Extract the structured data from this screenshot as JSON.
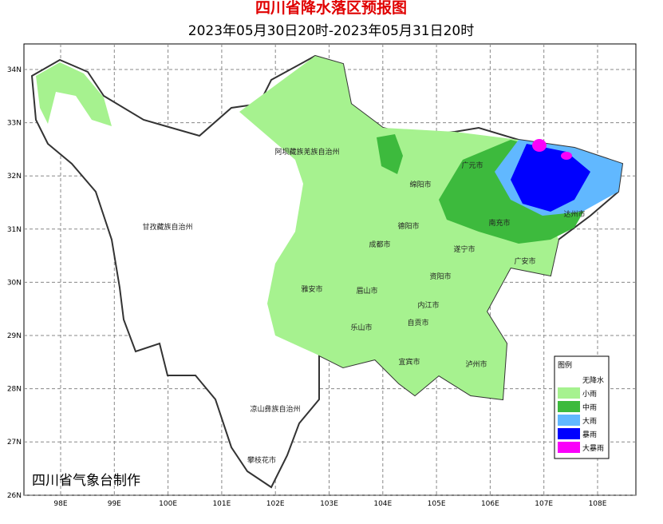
{
  "header": {
    "title": "四川省降水落区预报图",
    "subtitle": "2023年05月30日20时-2023年05月31日20时"
  },
  "axes": {
    "longitude": [
      "98E",
      "99E",
      "100E",
      "101E",
      "102E",
      "103E",
      "104E",
      "105E",
      "106E",
      "107E",
      "108E"
    ],
    "latitude": [
      "34N",
      "33N",
      "32N",
      "31N",
      "30N",
      "29N",
      "28N",
      "27N",
      "26N"
    ]
  },
  "regions": [
    "阿坝藏族羌族自治州",
    "甘孜藏族自治州",
    "广元市",
    "绵阳市",
    "达州市",
    "南充市",
    "德阳市",
    "成都市",
    "遂宁市",
    "广安市",
    "资阳市",
    "雅安市",
    "眉山市",
    "内江市",
    "乐山市",
    "自贡市",
    "宜宾市",
    "泸州市",
    "凉山彝族自治州",
    "攀枝花市"
  ],
  "legend": {
    "title": "图例",
    "items": [
      {
        "label": "无降水",
        "color": "#ffffff"
      },
      {
        "label": "小雨",
        "color": "#a6f28f"
      },
      {
        "label": "中雨",
        "color": "#3dba3d"
      },
      {
        "label": "大雨",
        "color": "#61b8ff"
      },
      {
        "label": "暴雨",
        "color": "#0000fe"
      },
      {
        "label": "大暴雨",
        "color": "#fa00fa"
      }
    ]
  },
  "footer": {
    "credit": "四川省气象台制作"
  }
}
